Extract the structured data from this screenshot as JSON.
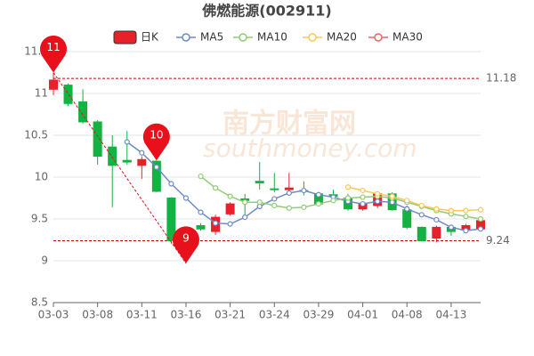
{
  "chart_data": {
    "type": "candlestick",
    "title": "佛燃能源(002911)",
    "watermark": [
      "南方财富网",
      "southmoney.com"
    ],
    "categories": [
      "03-03",
      null,
      null,
      "03-08",
      null,
      null,
      "03-11",
      null,
      null,
      "03-16",
      null,
      null,
      "03-21",
      null,
      null,
      "03-24",
      null,
      null,
      "03-29",
      null,
      null,
      "04-01",
      null,
      null,
      "04-08",
      null,
      null,
      "04-13",
      null,
      null
    ],
    "series": [
      {
        "name": "日K",
        "type": "candlestick",
        "up_color": "#e8202a",
        "down_color": "#14b143",
        "open": [
          11.05,
          11.1,
          10.9,
          10.66,
          10.36,
          10.2,
          10.14,
          10.19,
          9.75,
          9.3,
          9.42,
          9.35,
          9.56,
          9.74,
          9.95,
          9.86,
          9.85,
          9.84,
          9.8,
          9.79,
          9.75,
          9.62,
          9.66,
          9.8,
          9.61,
          9.4,
          9.27,
          9.4,
          9.37,
          9.38
        ],
        "close": [
          11.16,
          10.88,
          10.66,
          10.25,
          10.14,
          10.18,
          10.21,
          9.83,
          9.24,
          9.05,
          9.38,
          9.52,
          9.68,
          9.72,
          9.93,
          9.85,
          9.87,
          9.83,
          9.68,
          9.77,
          9.62,
          9.68,
          9.8,
          9.61,
          9.4,
          9.24,
          9.4,
          9.35,
          9.42,
          9.48
        ],
        "high": [
          11.25,
          11.12,
          11.05,
          10.68,
          10.5,
          10.55,
          10.25,
          10.2,
          9.76,
          9.32,
          9.45,
          9.55,
          9.7,
          9.8,
          10.18,
          10.05,
          10.05,
          9.95,
          9.82,
          9.85,
          9.8,
          9.7,
          9.82,
          9.82,
          9.66,
          9.41,
          9.42,
          9.42,
          9.44,
          9.5
        ],
        "low": [
          10.98,
          10.85,
          10.64,
          10.15,
          9.64,
          10.15,
          9.98,
          9.82,
          9.2,
          8.97,
          9.36,
          9.31,
          9.54,
          9.55,
          9.85,
          9.82,
          9.78,
          9.78,
          9.65,
          9.72,
          9.6,
          9.6,
          9.63,
          9.6,
          9.38,
          9.23,
          9.22,
          9.3,
          9.35,
          9.36
        ]
      },
      {
        "name": "MA5",
        "color": "#6f8ac6",
        "values": [
          null,
          null,
          null,
          null,
          null,
          10.42,
          10.29,
          10.12,
          9.92,
          9.75,
          9.58,
          9.45,
          9.44,
          9.52,
          9.65,
          9.74,
          9.81,
          9.84,
          9.79,
          9.76,
          9.71,
          9.68,
          9.71,
          9.7,
          9.62,
          9.55,
          9.49,
          9.4,
          9.36,
          9.38
        ]
      },
      {
        "name": "MA10",
        "color": "#91cc75",
        "values": [
          null,
          null,
          null,
          null,
          null,
          null,
          null,
          null,
          null,
          null,
          10.01,
          9.87,
          9.77,
          9.7,
          9.7,
          9.66,
          9.63,
          9.64,
          9.68,
          9.72,
          9.75,
          9.76,
          9.77,
          9.75,
          9.7,
          9.65,
          9.6,
          9.56,
          9.53,
          9.5
        ]
      },
      {
        "name": "MA20",
        "color": "#fac858",
        "values": [
          null,
          null,
          null,
          null,
          null,
          null,
          null,
          null,
          null,
          null,
          null,
          null,
          null,
          null,
          null,
          null,
          null,
          null,
          null,
          null,
          9.88,
          9.84,
          9.8,
          9.77,
          9.72,
          9.66,
          9.62,
          9.6,
          9.6,
          9.61
        ]
      },
      {
        "name": "MA30",
        "color": "#ee6666",
        "values": [
          null,
          null,
          null,
          null,
          null,
          null,
          null,
          null,
          null,
          null,
          null,
          null,
          null,
          null,
          null,
          null,
          null,
          null,
          null,
          null,
          null,
          null,
          null,
          null,
          null,
          null,
          null,
          null,
          null,
          null
        ]
      }
    ],
    "ylim": [
      8.5,
      11.5
    ],
    "yticks": [
      8.5,
      9,
      9.5,
      10,
      10.5,
      11,
      11.5
    ],
    "grid": true,
    "reference_lines": [
      {
        "value": 11.18,
        "color": "#cc0000"
      },
      {
        "value": 9.24,
        "color": "#cc0000"
      }
    ],
    "pins": [
      {
        "index": 0,
        "value": 11.25,
        "label": "11"
      },
      {
        "index": 7,
        "value": 10.2,
        "label": "10"
      },
      {
        "index": 9,
        "value": 8.97,
        "label": "9"
      }
    ],
    "pin_color": "#e8101a"
  }
}
